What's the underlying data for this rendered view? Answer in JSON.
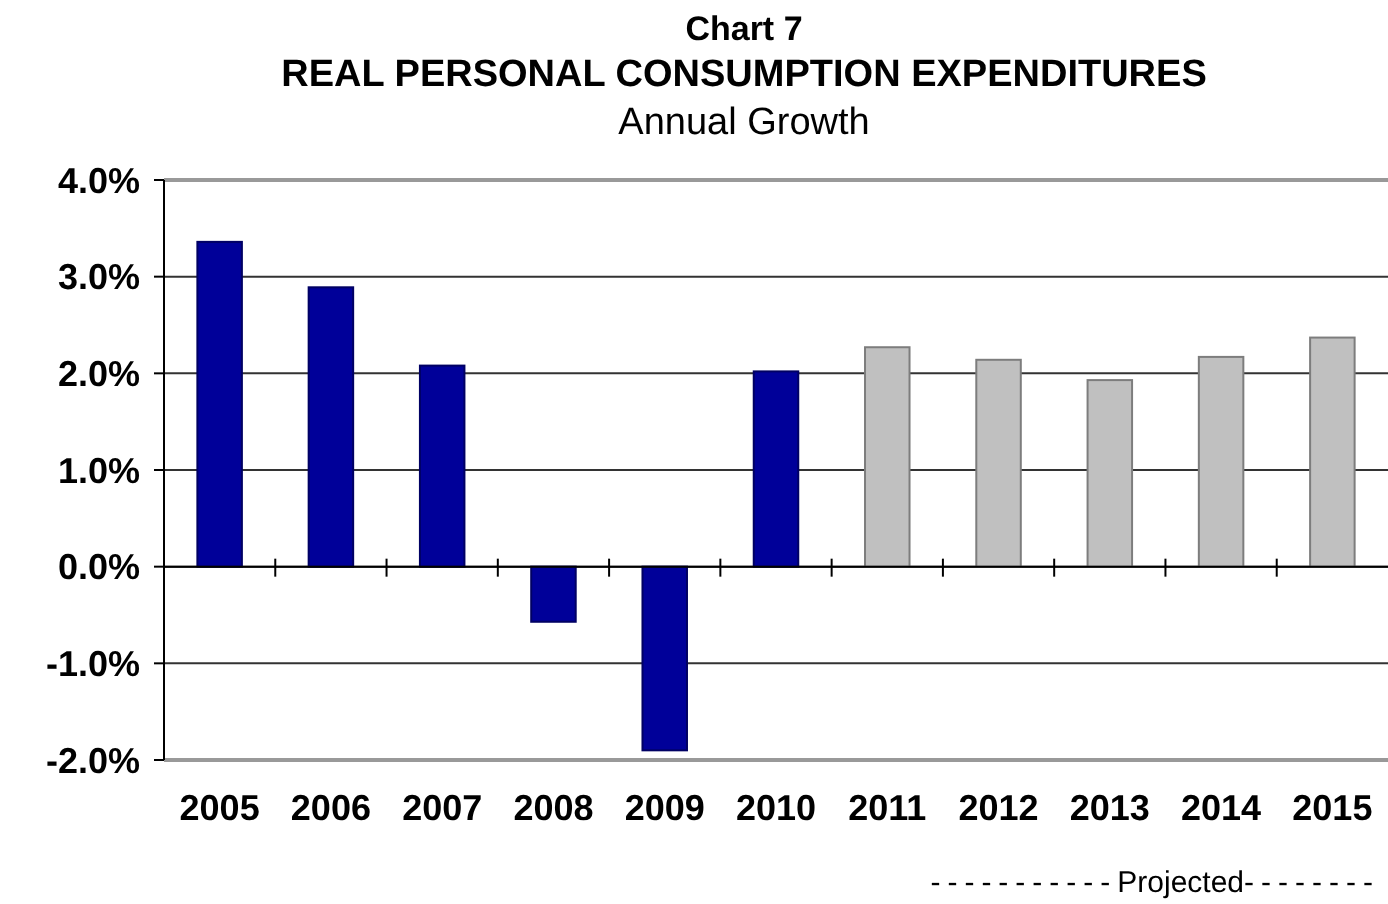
{
  "chart_data": {
    "type": "bar",
    "title": "Chart 7\nREAL PERSONAL CONSUMPTION EXPENDITURES",
    "subtitle": "Annual Growth",
    "categories": [
      "2005",
      "2006",
      "2007",
      "2008",
      "2009",
      "2010",
      "2011",
      "2012",
      "2013",
      "2014",
      "2015"
    ],
    "values": [
      3.36,
      2.89,
      2.08,
      -0.57,
      -1.9,
      2.02,
      2.27,
      2.14,
      1.93,
      2.17,
      2.37
    ],
    "colors": [
      "#000099",
      "#000099",
      "#000099",
      "#000099",
      "#000099",
      "#000099",
      "#c0c0c0",
      "#c0c0c0",
      "#c0c0c0",
      "#c0c0c0",
      "#c0c0c0"
    ],
    "ylim": [
      -2,
      4
    ],
    "yticks": [
      {
        "value": -2,
        "label": "-2.0%"
      },
      {
        "value": -1,
        "label": "-1.0%"
      },
      {
        "value": 0,
        "label": "0.0%"
      },
      {
        "value": 1,
        "label": "1.0%"
      },
      {
        "value": 2,
        "label": "2.0%"
      },
      {
        "value": 3,
        "label": "3.0%"
      },
      {
        "value": 4,
        "label": "4.0%"
      }
    ],
    "grid": "y",
    "annotations": [
      "-----------Projected--------"
    ]
  }
}
